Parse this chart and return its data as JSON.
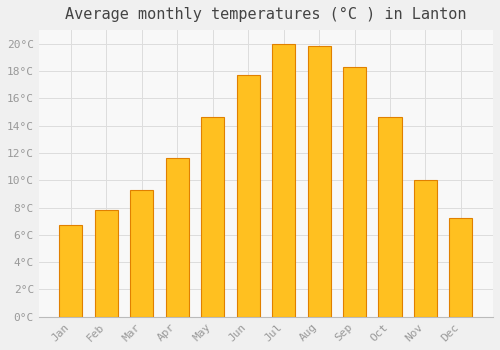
{
  "title": "Average monthly temperatures (°C ) in Lanton",
  "months": [
    "Jan",
    "Feb",
    "Mar",
    "Apr",
    "May",
    "Jun",
    "Jul",
    "Aug",
    "Sep",
    "Oct",
    "Nov",
    "Dec"
  ],
  "temperatures": [
    6.7,
    7.8,
    9.3,
    11.6,
    14.6,
    17.7,
    20.0,
    19.8,
    18.3,
    14.6,
    10.0,
    7.2
  ],
  "bar_color": "#FFC020",
  "bar_edge_color": "#E08000",
  "background_color": "#F0F0F0",
  "plot_bg_color": "#F8F8F8",
  "grid_color": "#DDDDDD",
  "ylim": [
    0,
    21
  ],
  "ytick_step": 2,
  "title_fontsize": 11,
  "tick_fontsize": 8,
  "tick_color": "#999999",
  "title_color": "#444444",
  "font_family": "monospace"
}
